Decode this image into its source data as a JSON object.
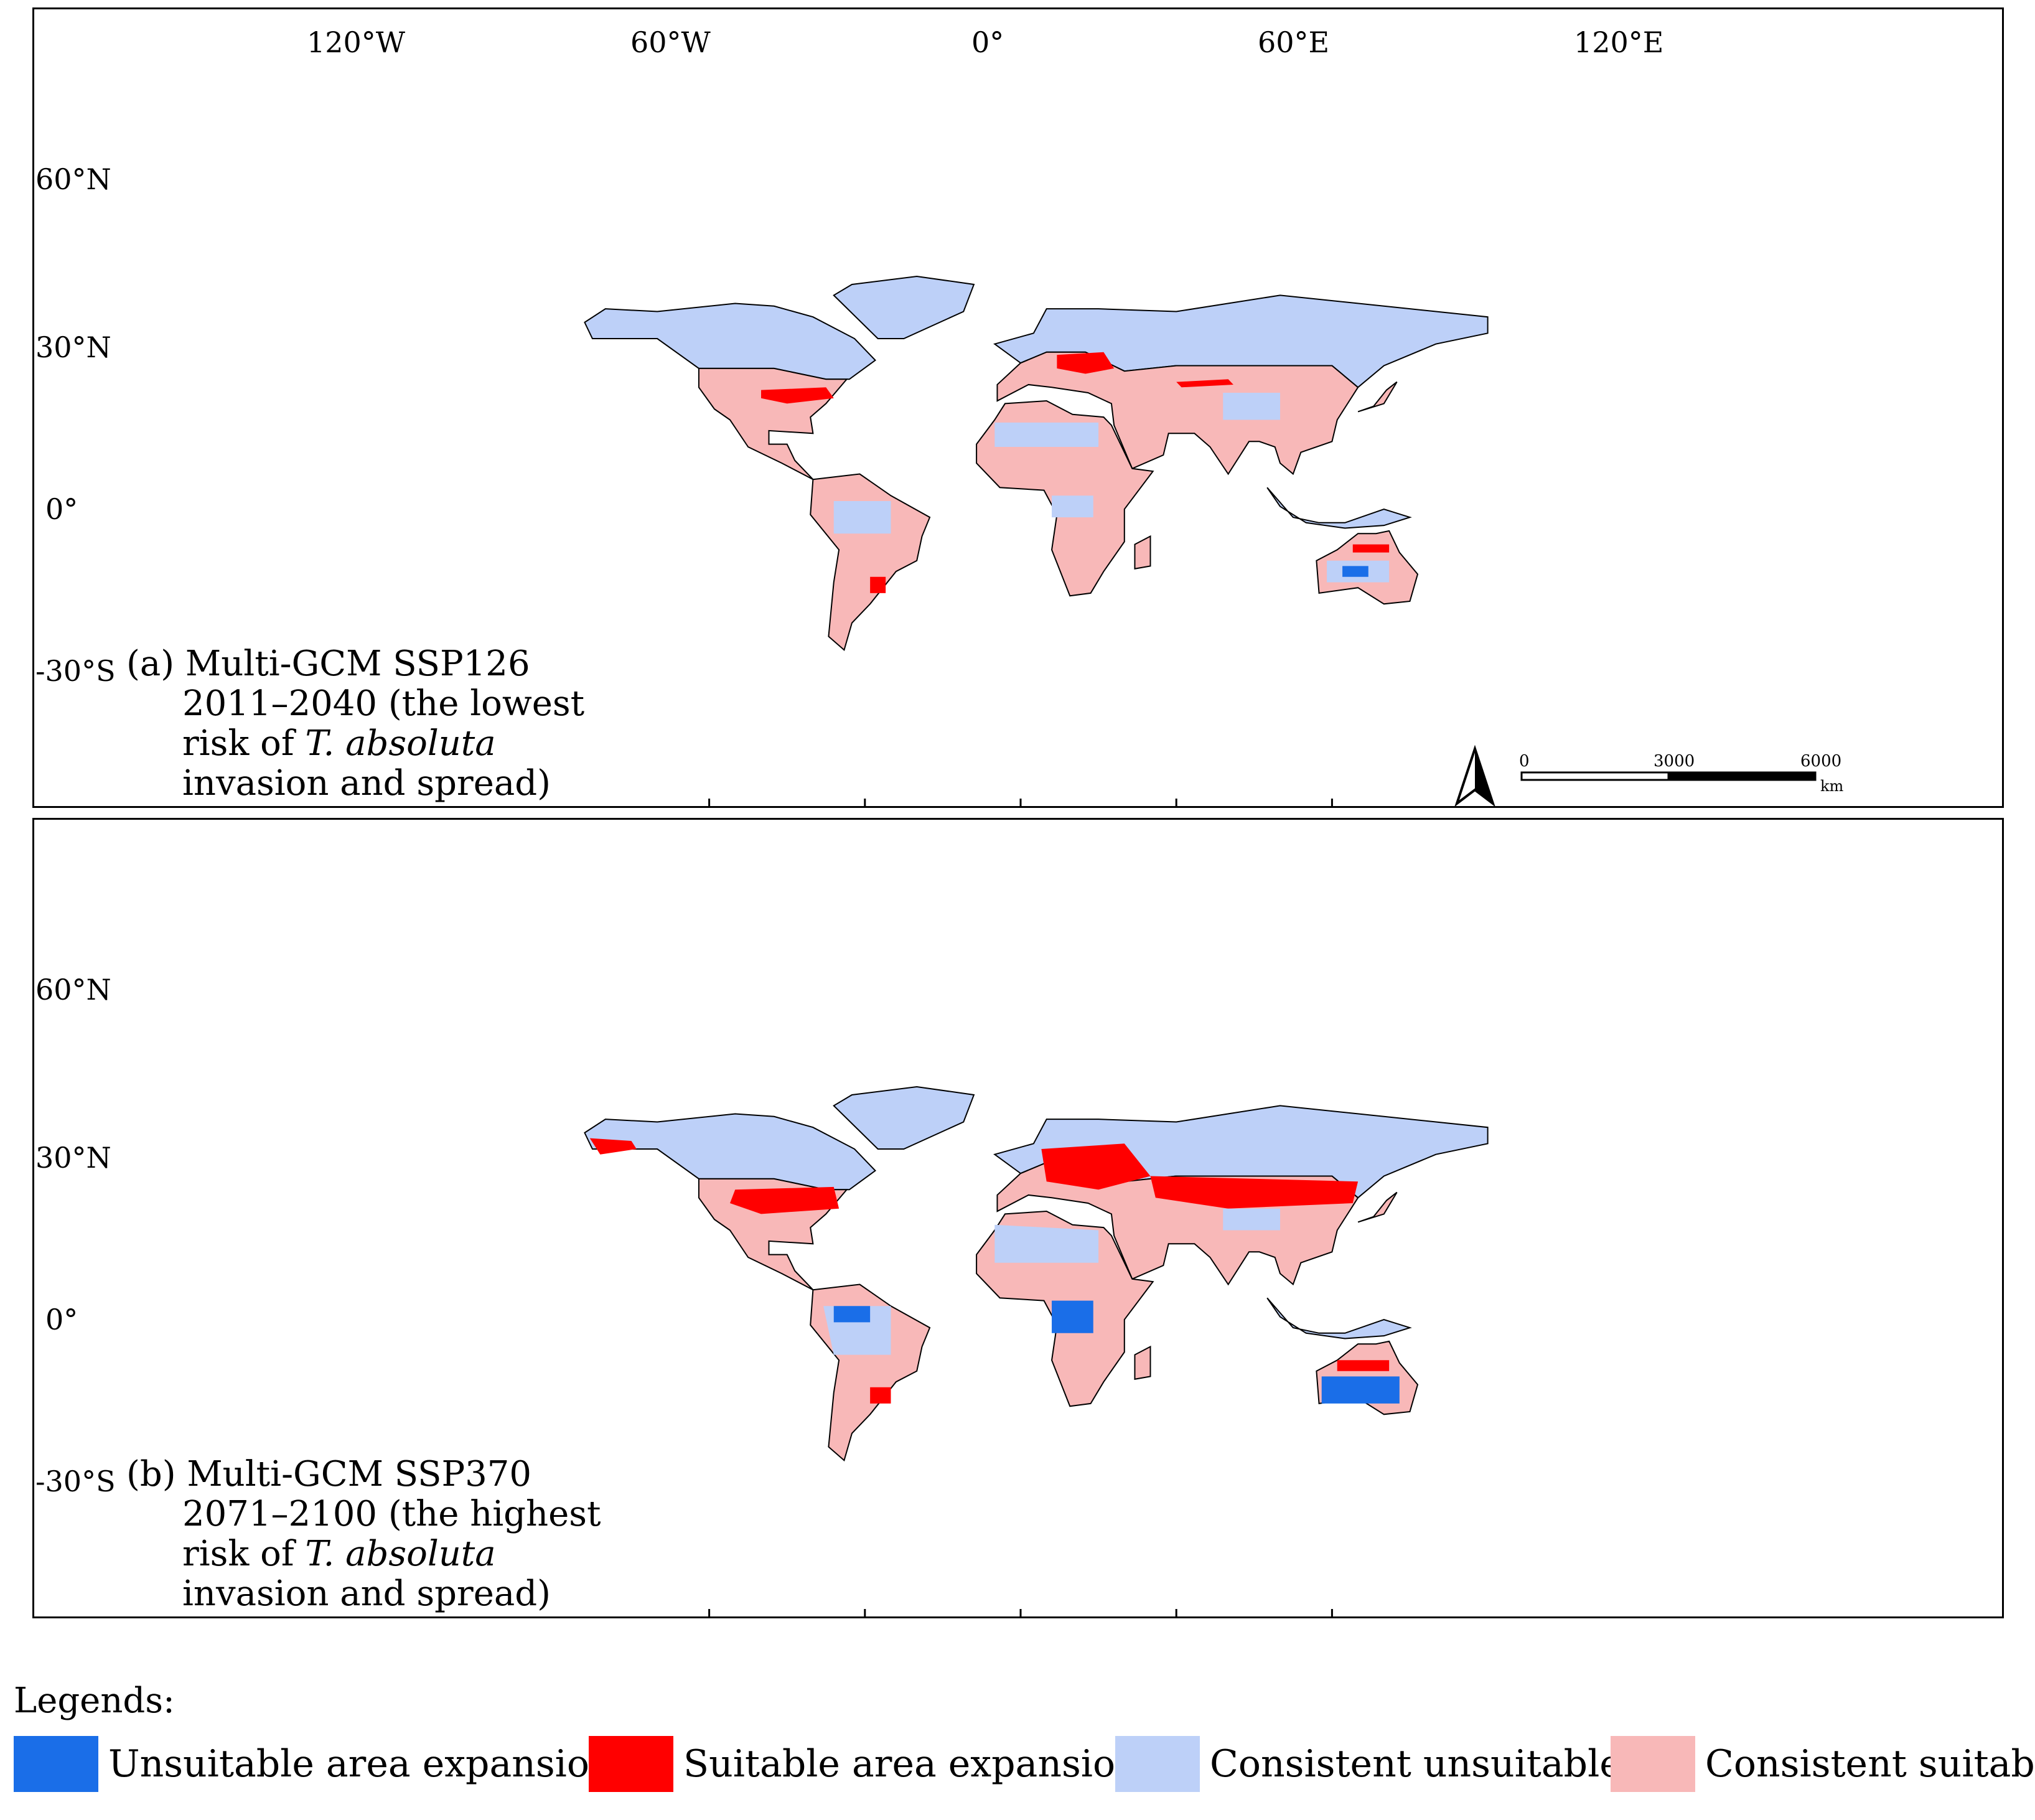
{
  "graticule": {
    "top_labels": [
      "120°W",
      "60°W",
      "0°",
      "60°E",
      "120°E"
    ],
    "left_labels": [
      "60°N",
      "30°N",
      "0°",
      "-30°S"
    ]
  },
  "panels": [
    {
      "id": "a",
      "caption_lines": [
        "(a) Multi-GCM SSP126",
        "2011–2040 (the lowest",
        "risk of ",
        "invasion and spread)"
      ],
      "caption_italic": "T. absoluta",
      "has_scalebar": true
    },
    {
      "id": "b",
      "caption_lines": [
        "(b) Multi-GCM SSP370",
        "2071–2100 (the highest",
        "risk of ",
        "invasion and spread)"
      ],
      "caption_italic": "T. absoluta",
      "has_scalebar": false
    }
  ],
  "scalebar": {
    "labels": [
      "0",
      "3000",
      "6000"
    ],
    "unit": "km"
  },
  "legend": {
    "title": "Legends:",
    "items": [
      {
        "label": "Unsuitable area expansion",
        "color": "#1a6ee8"
      },
      {
        "label": "Suitable area expansion",
        "color": "#ff0000"
      },
      {
        "label": "Consistent unsuitable",
        "color": "#bdd0f8"
      },
      {
        "label": "Consistent suitable",
        "color": "#f8b8b8"
      }
    ]
  },
  "colors": {
    "unsuitable_expansion": "#1a6ee8",
    "suitable_expansion": "#ff0000",
    "consistent_unsuitable": "#bdd0f8",
    "consistent_suitable": "#f8b8b8",
    "border": "#000000"
  },
  "north_arrow": "north-arrow-icon"
}
